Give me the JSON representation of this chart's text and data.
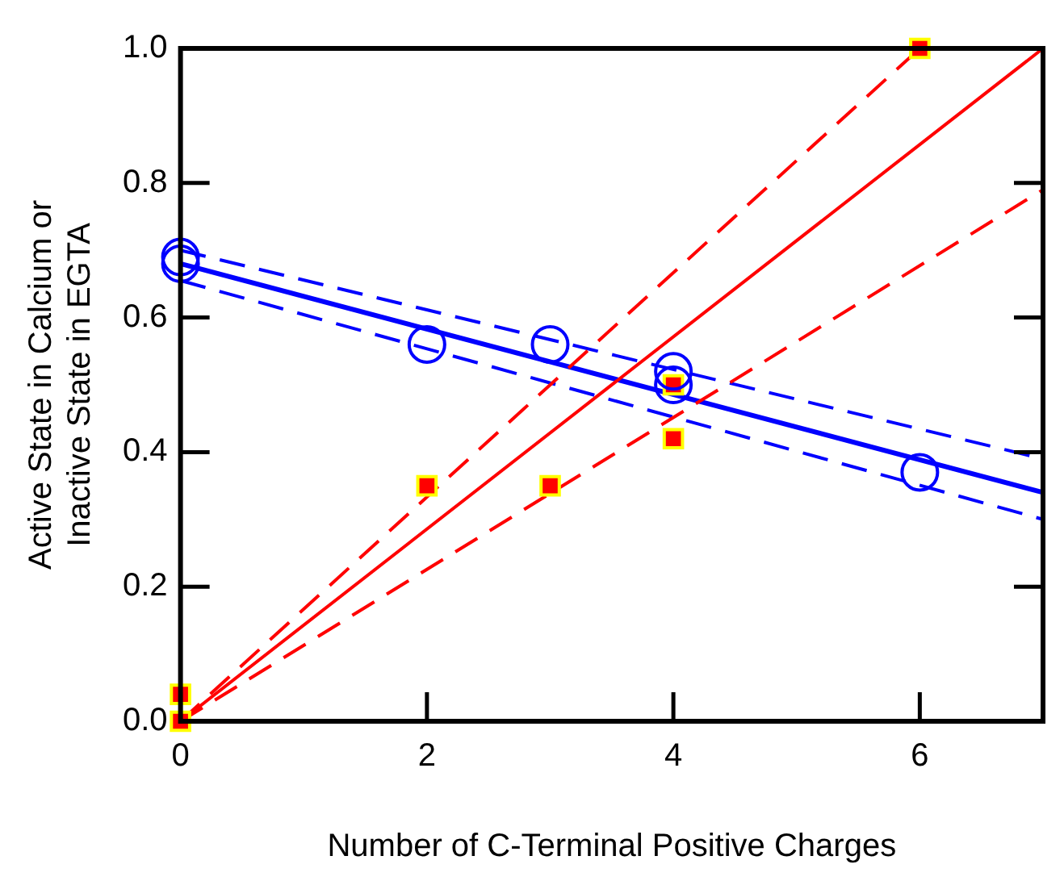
{
  "chart_data": {
    "type": "scatter",
    "xlabel": "Number of C-Terminal Positive Charges",
    "ylabel": "Active State in Calcium or\nInactive State in EGTA",
    "xlim": [
      0,
      7
    ],
    "xticks": [
      0,
      2,
      4,
      6
    ],
    "ylim": [
      0,
      1
    ],
    "yticks": [
      {
        "value": 0,
        "label": "0.0"
      },
      0.2,
      0.4,
      0.6,
      0.8,
      {
        "value": 1,
        "label": "1.0"
      }
    ],
    "grid": false,
    "legend": false,
    "series": [
      {
        "type": "line",
        "color": "#ff0000",
        "x": [
          0,
          7
        ],
        "values": [
          0,
          1
        ],
        "line_style": "solid",
        "marker": "none"
      },
      {
        "type": "line",
        "color": "#ff0000",
        "x": [
          0,
          6
        ],
        "values": [
          0,
          1
        ],
        "line_style": "dashed",
        "marker": "none"
      },
      {
        "type": "line",
        "color": "#ff0000",
        "x": [
          0,
          7
        ],
        "values": [
          0,
          0.79
        ],
        "line_style": "dashed",
        "marker": "none"
      },
      {
        "type": "line",
        "color": "#0000ff",
        "x": [
          0,
          7
        ],
        "values": [
          0.68,
          0.34
        ],
        "line_style": "solid",
        "marker": "none"
      },
      {
        "type": "line",
        "color": "#0000ff",
        "x": [
          0,
          7
        ],
        "values": [
          0.7,
          0.39
        ],
        "line_style": "dashed",
        "marker": "none"
      },
      {
        "type": "line",
        "color": "#0000ff",
        "x": [
          0,
          7
        ],
        "values": [
          0.655,
          0.3
        ],
        "line_style": "dashed",
        "marker": "none"
      },
      {
        "type": "scatter",
        "color": "#0000ff",
        "x": [
          0,
          0,
          2,
          3,
          4,
          4,
          6
        ],
        "values": [
          0.68,
          0.69,
          0.56,
          0.56,
          0.5,
          0.52,
          0.37
        ],
        "marker": "circle"
      },
      {
        "type": "scatter",
        "color": "#ff0000",
        "x": [
          0,
          0,
          2,
          3,
          4,
          4,
          6
        ],
        "values": [
          0,
          0.04,
          0.35,
          0.35,
          0.5,
          0.42,
          1.0
        ],
        "marker": "square"
      }
    ]
  }
}
